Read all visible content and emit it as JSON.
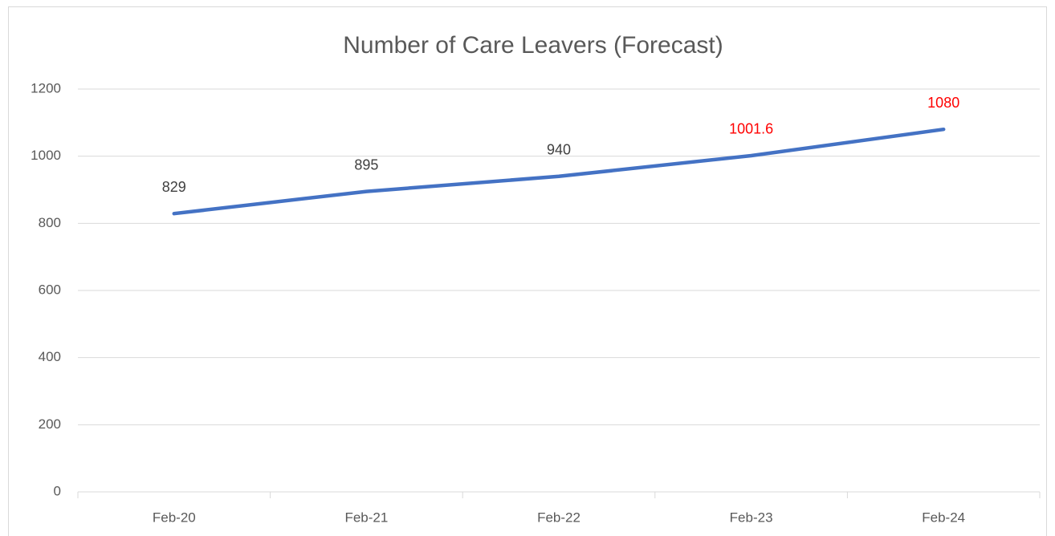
{
  "chart_data": {
    "type": "line",
    "title": "Number of Care Leavers (Forecast)",
    "categories": [
      "Feb-20",
      "Feb-21",
      "Feb-22",
      "Feb-23",
      "Feb-24"
    ],
    "series": [
      {
        "color": "#4472c4",
        "values": [
          829,
          895,
          940,
          1001.6,
          1080
        ],
        "label_colors": [
          "#404040",
          "#404040",
          "#404040",
          "#ff0000",
          "#ff0000"
        ]
      }
    ],
    "ylim": [
      0,
      1200
    ],
    "yticks": [
      0,
      200,
      400,
      600,
      800,
      1000,
      1200
    ],
    "grid": true
  }
}
